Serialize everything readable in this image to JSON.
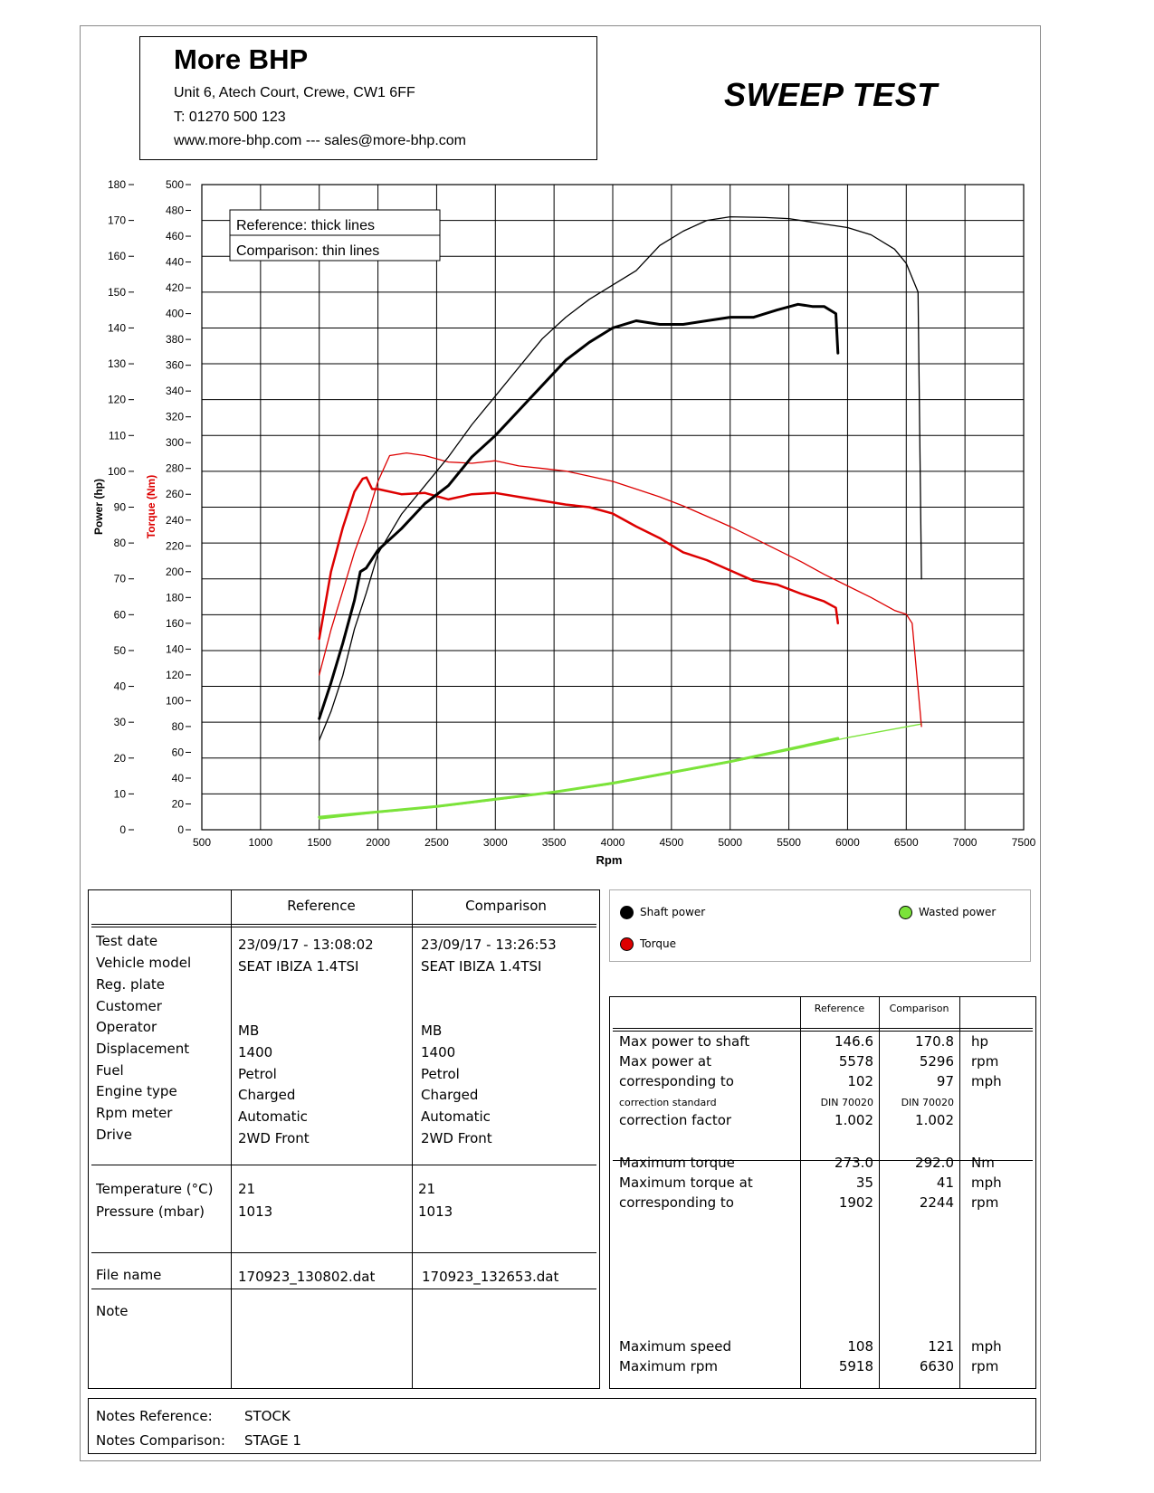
{
  "header": {
    "company": "More BHP",
    "address": "Unit 6, Atech Court, Crewe, CW1 6FF",
    "phone": "T: 01270 500 123",
    "web": "www.more-bhp.com --- sales@more-bhp.com",
    "test_type": "SWEEP TEST"
  },
  "chart_data": {
    "type": "line",
    "xlabel": "Rpm",
    "ylabel_power": "Power (hp)",
    "ylabel_torque": "Torque (Nm)",
    "xlim": [
      500,
      7500
    ],
    "ylim_power": [
      0,
      180
    ],
    "ylim_torque": [
      0,
      500
    ],
    "x_ticks": [
      500,
      1000,
      1500,
      2000,
      2500,
      3000,
      3500,
      4000,
      4500,
      5000,
      5500,
      6000,
      6500,
      7000,
      7500
    ],
    "power_ticks": [
      0,
      10,
      20,
      30,
      40,
      50,
      60,
      70,
      80,
      90,
      100,
      110,
      120,
      130,
      140,
      150,
      160,
      170,
      180
    ],
    "torque_ticks": [
      0,
      20,
      40,
      60,
      80,
      100,
      120,
      140,
      160,
      180,
      200,
      220,
      240,
      260,
      280,
      300,
      320,
      340,
      360,
      380,
      400,
      420,
      440,
      460,
      480,
      500
    ],
    "grid": true,
    "legend_note": {
      "reference": "Reference: thick lines",
      "comparison": "Comparison: thin lines"
    },
    "legend_items": {
      "shaft_power": "Shaft power",
      "torque": "Torque",
      "wasted_power": "Wasted power"
    },
    "colors": {
      "shaft_power": "#000000",
      "torque": "#dd0000",
      "wasted_power": "#7be33a"
    },
    "series": [
      {
        "key": "ref_power",
        "axis": "power",
        "color": "#000000",
        "width": 3,
        "points": [
          [
            1500,
            31
          ],
          [
            1600,
            41
          ],
          [
            1700,
            52
          ],
          [
            1800,
            64
          ],
          [
            1850,
            72
          ],
          [
            1900,
            73
          ],
          [
            2000,
            78
          ],
          [
            2200,
            84
          ],
          [
            2400,
            91
          ],
          [
            2600,
            96
          ],
          [
            2800,
            104
          ],
          [
            3000,
            110
          ],
          [
            3200,
            117
          ],
          [
            3400,
            124
          ],
          [
            3600,
            131
          ],
          [
            3800,
            136
          ],
          [
            4000,
            140
          ],
          [
            4200,
            142
          ],
          [
            4400,
            141
          ],
          [
            4600,
            141
          ],
          [
            4800,
            142
          ],
          [
            5000,
            143
          ],
          [
            5200,
            143
          ],
          [
            5400,
            145
          ],
          [
            5578,
            146.6
          ],
          [
            5700,
            146
          ],
          [
            5800,
            146
          ],
          [
            5900,
            144
          ],
          [
            5918,
            133
          ]
        ]
      },
      {
        "key": "cmp_power",
        "axis": "power",
        "color": "#000000",
        "width": 1.3,
        "points": [
          [
            1500,
            25
          ],
          [
            1600,
            33
          ],
          [
            1700,
            43
          ],
          [
            1800,
            56
          ],
          [
            1900,
            66
          ],
          [
            2000,
            77
          ],
          [
            2200,
            88
          ],
          [
            2400,
            96
          ],
          [
            2600,
            104
          ],
          [
            2800,
            113
          ],
          [
            3000,
            121
          ],
          [
            3200,
            129
          ],
          [
            3400,
            137
          ],
          [
            3600,
            143
          ],
          [
            3800,
            148
          ],
          [
            4000,
            152
          ],
          [
            4200,
            156
          ],
          [
            4400,
            163
          ],
          [
            4600,
            167
          ],
          [
            4800,
            170
          ],
          [
            5000,
            171
          ],
          [
            5296,
            170.8
          ],
          [
            5500,
            170.5
          ],
          [
            5800,
            169
          ],
          [
            6000,
            168
          ],
          [
            6200,
            166
          ],
          [
            6400,
            162
          ],
          [
            6500,
            158
          ],
          [
            6600,
            150
          ],
          [
            6630,
            70
          ]
        ]
      },
      {
        "key": "ref_torque",
        "axis": "torque",
        "color": "#dd0000",
        "width": 2.5,
        "points": [
          [
            1500,
            148
          ],
          [
            1600,
            200
          ],
          [
            1700,
            234
          ],
          [
            1800,
            262
          ],
          [
            1870,
            272
          ],
          [
            1902,
            273
          ],
          [
            1950,
            264
          ],
          [
            2000,
            264
          ],
          [
            2200,
            260
          ],
          [
            2400,
            261
          ],
          [
            2600,
            256
          ],
          [
            2800,
            260
          ],
          [
            3000,
            261
          ],
          [
            3200,
            258
          ],
          [
            3400,
            255
          ],
          [
            3600,
            252
          ],
          [
            3800,
            250
          ],
          [
            4000,
            245
          ],
          [
            4200,
            235
          ],
          [
            4400,
            226
          ],
          [
            4600,
            215
          ],
          [
            4800,
            209
          ],
          [
            5000,
            201
          ],
          [
            5200,
            193
          ],
          [
            5400,
            190
          ],
          [
            5600,
            183
          ],
          [
            5800,
            177
          ],
          [
            5900,
            172
          ],
          [
            5918,
            160
          ]
        ]
      },
      {
        "key": "cmp_torque",
        "axis": "torque",
        "color": "#dd0000",
        "width": 1.3,
        "points": [
          [
            1500,
            120
          ],
          [
            1600,
            155
          ],
          [
            1700,
            185
          ],
          [
            1800,
            215
          ],
          [
            1900,
            240
          ],
          [
            2000,
            270
          ],
          [
            2100,
            290
          ],
          [
            2244,
            292
          ],
          [
            2400,
            290
          ],
          [
            2600,
            285
          ],
          [
            2800,
            284
          ],
          [
            3000,
            286
          ],
          [
            3200,
            282
          ],
          [
            3400,
            280
          ],
          [
            3600,
            278
          ],
          [
            3800,
            274
          ],
          [
            4000,
            270
          ],
          [
            4200,
            264
          ],
          [
            4400,
            258
          ],
          [
            4600,
            251
          ],
          [
            4800,
            243
          ],
          [
            5000,
            235
          ],
          [
            5200,
            226
          ],
          [
            5400,
            217
          ],
          [
            5600,
            208
          ],
          [
            5800,
            198
          ],
          [
            6000,
            189
          ],
          [
            6200,
            180
          ],
          [
            6400,
            170
          ],
          [
            6500,
            167
          ],
          [
            6550,
            160
          ],
          [
            6630,
            80
          ]
        ]
      },
      {
        "key": "ref_wasted",
        "axis": "power",
        "color": "#7be33a",
        "width": 3,
        "points": [
          [
            1500,
            3.5
          ],
          [
            2000,
            5
          ],
          [
            2500,
            6.5
          ],
          [
            3000,
            8.5
          ],
          [
            3500,
            10.5
          ],
          [
            4000,
            13
          ],
          [
            4500,
            16
          ],
          [
            5000,
            19
          ],
          [
            5500,
            22.5
          ],
          [
            5918,
            25.5
          ]
        ]
      },
      {
        "key": "cmp_wasted",
        "axis": "power",
        "color": "#7be33a",
        "width": 1.3,
        "points": [
          [
            1500,
            3
          ],
          [
            2000,
            4.8
          ],
          [
            2500,
            6.3
          ],
          [
            3000,
            8.3
          ],
          [
            3500,
            10.4
          ],
          [
            4000,
            12.8
          ],
          [
            4500,
            15.8
          ],
          [
            5000,
            18.8
          ],
          [
            5500,
            22.2
          ],
          [
            6000,
            25.7
          ],
          [
            6630,
            29.5
          ]
        ]
      }
    ]
  },
  "table": {
    "col_reference": "Reference",
    "col_comparison": "Comparison",
    "labels": [
      "Test date",
      "Vehicle model",
      "Reg. plate",
      "Customer",
      "Operator",
      "Displacement",
      "Fuel",
      "Engine type",
      "Rpm meter",
      "Drive"
    ],
    "ref_values": [
      "23/09/17 - 13:08:02",
      "SEAT IBIZA 1.4TSI",
      "",
      "",
      "MB",
      "1400",
      "Petrol",
      "Charged",
      "Automatic",
      "2WD Front"
    ],
    "cmp_values": [
      "23/09/17 - 13:26:53",
      "SEAT IBIZA 1.4TSI",
      "",
      "",
      "MB",
      "1400",
      "Petrol",
      "Charged",
      "Automatic",
      "2WD Front"
    ],
    "env_labels": [
      "Temperature (°C)",
      "Pressure (mbar)"
    ],
    "env_ref": [
      "21",
      "1013"
    ],
    "env_cmp": [
      "21",
      "1013"
    ],
    "file_label": "File name",
    "file_ref": "170923_130802.dat",
    "file_cmp": "170923_132653.dat",
    "note_label": "Note"
  },
  "results": {
    "col_reference": "Reference",
    "col_comparison": "Comparison",
    "rows": [
      {
        "label": "Max power to shaft",
        "ref": "146.6",
        "cmp": "170.8",
        "unit": "hp"
      },
      {
        "label": "Max power at",
        "ref": "5578",
        "cmp": "5296",
        "unit": "rpm"
      },
      {
        "label": "corresponding to",
        "ref": "102",
        "cmp": "97",
        "unit": "mph"
      },
      {
        "label": "correction standard",
        "ref": "DIN 70020",
        "cmp": "DIN 70020",
        "unit": ""
      },
      {
        "label": "correction factor",
        "ref": "1.002",
        "cmp": "1.002",
        "unit": ""
      },
      {
        "label": "Maximum torque",
        "ref": "273.0",
        "cmp": "292.0",
        "unit": "Nm"
      },
      {
        "label": "Maximum torque at",
        "ref": "35",
        "cmp": "41",
        "unit": "mph"
      },
      {
        "label": "corresponding to",
        "ref": "1902",
        "cmp": "2244",
        "unit": "rpm"
      },
      {
        "label": "Maximum speed",
        "ref": "108",
        "cmp": "121",
        "unit": "mph"
      },
      {
        "label": "Maximum rpm",
        "ref": "5918",
        "cmp": "6630",
        "unit": "rpm"
      }
    ]
  },
  "notes": {
    "reference_label": "Notes Reference:",
    "reference_value": "STOCK",
    "comparison_label": "Notes Comparison:",
    "comparison_value": "STAGE 1"
  }
}
